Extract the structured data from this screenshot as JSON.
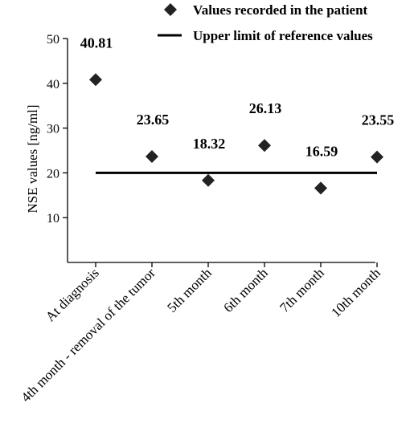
{
  "chart_data": {
    "type": "scatter",
    "categories": [
      "At diagnosis",
      "4th month - removal of the tumor",
      "5th month",
      "6th month",
      "7th month",
      "10th month"
    ],
    "series": [
      {
        "name": "Values recorded in the patient",
        "values": [
          40.81,
          23.65,
          18.32,
          26.13,
          16.59,
          23.55
        ],
        "marker": "diamond",
        "color": "#222222"
      }
    ],
    "data_labels": [
      "40.81",
      "23.65",
      "18.32",
      "26.13",
      "16.59",
      "23.55"
    ],
    "reference_line": {
      "name": "Upper limit of reference values",
      "value": 20,
      "color": "#000000"
    },
    "ylabel": "NSE values [ng/ml]",
    "xlabel": "",
    "ylim": [
      0,
      50
    ],
    "yticks": [
      10,
      20,
      30,
      40,
      50
    ],
    "grid": false,
    "legend_position": "top-right"
  }
}
